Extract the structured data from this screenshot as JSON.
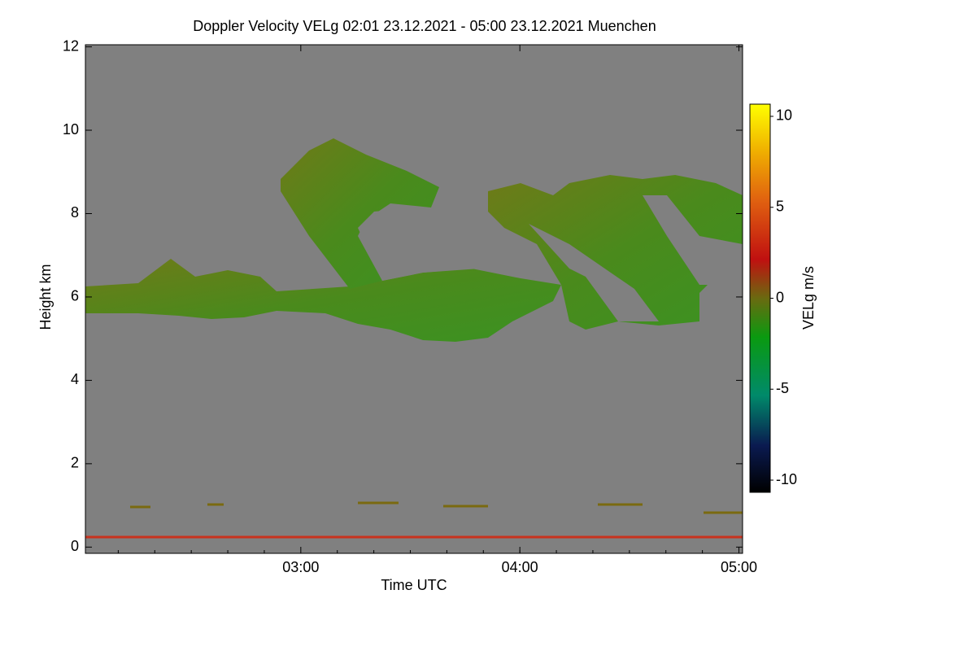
{
  "chart_data": {
    "type": "heatmap",
    "title": "Doppler Velocity VELg   02:01 23.12.2021 - 05:00 23.12.2021 Muenchen",
    "xlabel": "Time UTC",
    "ylabel": "Height km",
    "xlim": [
      2.0167,
      5.0167
    ],
    "xticks": [
      {
        "value": 3,
        "label": "03:00"
      },
      {
        "value": 4,
        "label": "04:00"
      },
      {
        "value": 5,
        "label": "05:00"
      }
    ],
    "ylim": [
      -0.15,
      12.05
    ],
    "yticks": [
      0,
      2,
      4,
      6,
      8,
      10,
      12
    ],
    "background": "#808080",
    "colorbar": {
      "label": "VELg m/s",
      "lim": [
        -10.67,
        10.67
      ],
      "ticks": [
        -10,
        -5,
        0,
        5,
        10
      ]
    }
  }
}
